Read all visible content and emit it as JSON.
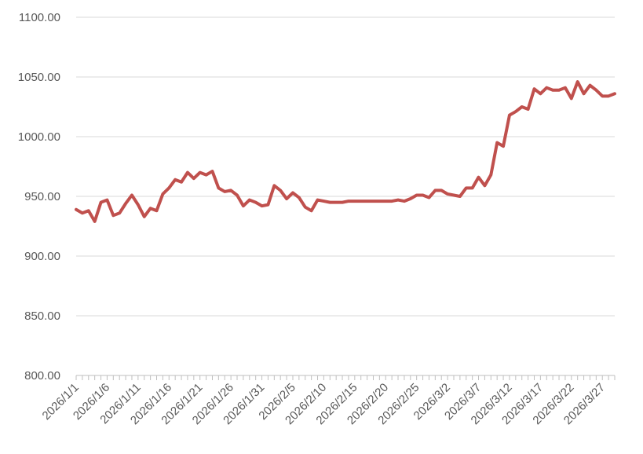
{
  "chart_data": {
    "type": "line",
    "categories": [
      "2026/1/1",
      null,
      null,
      null,
      null,
      "2026/1/6",
      null,
      null,
      null,
      null,
      "2026/1/11",
      null,
      null,
      null,
      null,
      "2026/1/16",
      null,
      null,
      null,
      null,
      "2026/1/21",
      null,
      null,
      null,
      null,
      "2026/1/26",
      null,
      null,
      null,
      null,
      "2026/1/31",
      null,
      null,
      null,
      null,
      "2026/2/5",
      null,
      null,
      null,
      null,
      "2026/2/10",
      null,
      null,
      null,
      null,
      "2026/2/15",
      null,
      null,
      null,
      null,
      "2026/2/20",
      null,
      null,
      null,
      null,
      "2026/2/25",
      null,
      null,
      null,
      null,
      "2026/3/2",
      null,
      null,
      null,
      null,
      "2026/3/7",
      null,
      null,
      null,
      null,
      "2026/3/12",
      null,
      null,
      null,
      null,
      "2026/3/17",
      null,
      null,
      null,
      null,
      "2026/3/22",
      null,
      null,
      null,
      null,
      "2026/3/27",
      null,
      null
    ],
    "series": [
      {
        "color": "#c0504d",
        "values": [
          939,
          936,
          938,
          929,
          945,
          947,
          934,
          936,
          944,
          951,
          943,
          933,
          940,
          938,
          952,
          957,
          964,
          962,
          970,
          965,
          970,
          968,
          971,
          957,
          954,
          955,
          951,
          942,
          947,
          945,
          942,
          943,
          959,
          955,
          948,
          953,
          949,
          941,
          938,
          947,
          946,
          945,
          945,
          945,
          946,
          946,
          946,
          946,
          946,
          946,
          946,
          946,
          947,
          946,
          948,
          951,
          951,
          949,
          955,
          955,
          952,
          951,
          950,
          957,
          957,
          966,
          959,
          968,
          995,
          992,
          1018,
          1021,
          1025,
          1023,
          1040,
          1036,
          1041,
          1039,
          1039,
          1041,
          1032,
          1046,
          1036,
          1043,
          1039,
          1034,
          1034,
          1036
        ]
      }
    ],
    "ylim": [
      800,
      1100
    ],
    "yticks": [
      {
        "value": 800,
        "label": "800.00"
      },
      {
        "value": 850,
        "label": "850.00"
      },
      {
        "value": 900,
        "label": "900.00"
      },
      {
        "value": 950,
        "label": "950.00"
      },
      {
        "value": 1000,
        "label": "1000.00"
      },
      {
        "value": 1050,
        "label": "1050.00"
      },
      {
        "value": 1100,
        "label": "1100.00"
      }
    ],
    "grid": true
  }
}
